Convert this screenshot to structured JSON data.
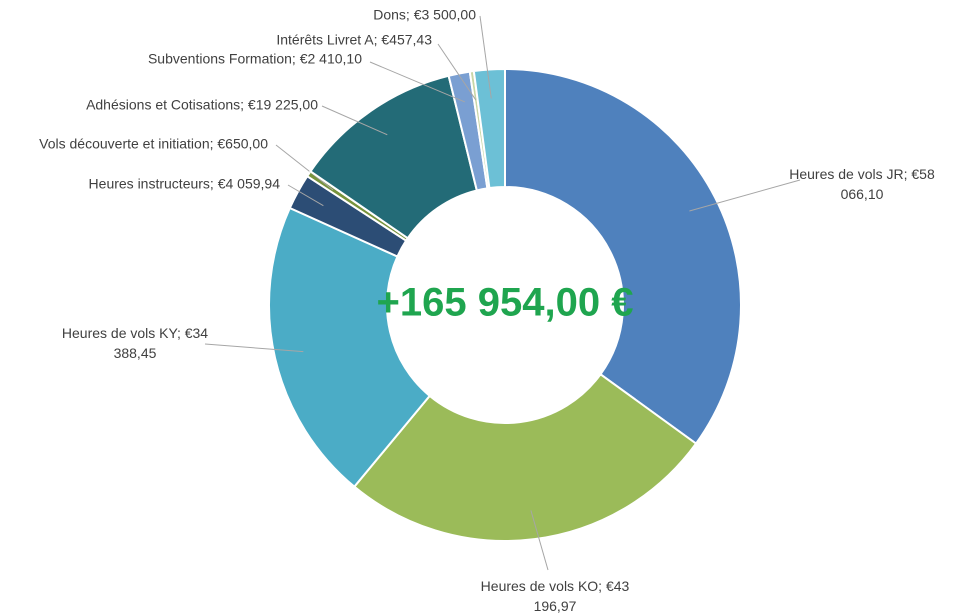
{
  "chart_data": {
    "type": "donut",
    "center_label": "+165 954,00 €",
    "values": [
      58066.1,
      43196.97,
      34388.45,
      4059.94,
      650.0,
      19225.0,
      2410.1,
      457.43,
      3500.0
    ],
    "value_labels": [
      "Heures de vols JR; €58 066,10",
      "Heures de vols KO; €43 196,97",
      "Heures de vols KY; €34 388,45",
      "Heures instructeurs; €4 059,94",
      "Vols découverte et initiation; €650,00",
      "Adhésions et Cotisations; €19 225,00",
      "Subventions Formation; €2 410,10",
      "Intérêts Livret A; €457,43",
      "Dons; €3 500,00"
    ],
    "colors": [
      "#4f81bd",
      "#9bbb59",
      "#4bacc6",
      "#2c4d75",
      "#77933c",
      "#236b77",
      "#7a9fd2",
      "#c9d6a6",
      "#6cc0d6"
    ]
  }
}
